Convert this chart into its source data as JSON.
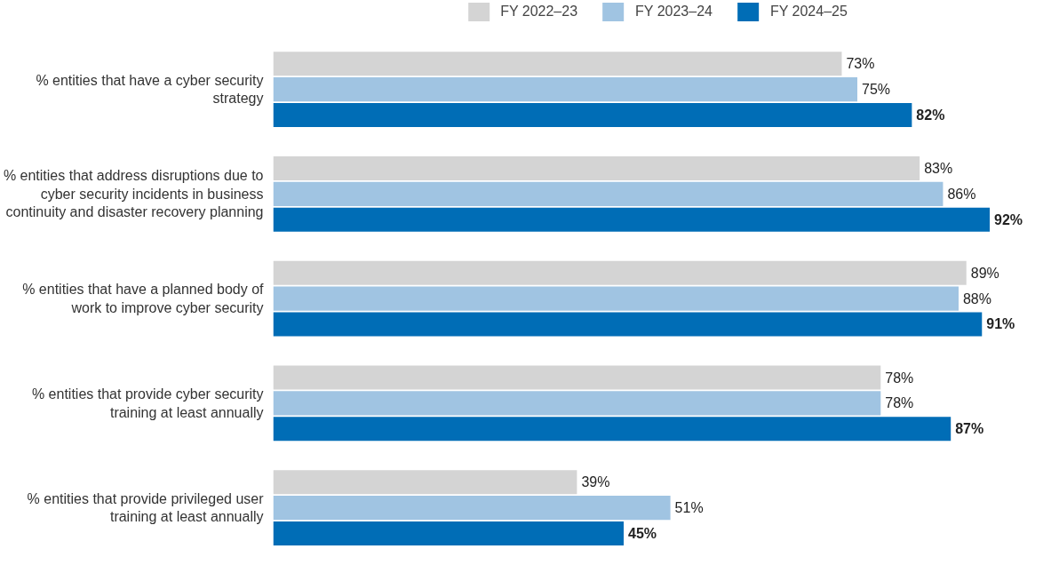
{
  "chart_data": {
    "type": "bar",
    "orientation": "horizontal",
    "categories": [
      "% entities that have a cyber security strategy",
      "% entities that address disruptions due to cyber security incidents in business continuity and disaster recovery planning",
      "% entities that have a planned body of work to improve cyber security",
      "% entities that provide cyber security training at least annually",
      "% entities that provide privileged user training at least annually"
    ],
    "series": [
      {
        "name": "FY 2022–23",
        "color": "#d4d4d4",
        "values": [
          73,
          83,
          89,
          78,
          39
        ],
        "value_labels": [
          "73%",
          "83%",
          "89%",
          "78%",
          "39%"
        ]
      },
      {
        "name": "FY 2023–24",
        "color": "#a0c4e2",
        "values": [
          75,
          86,
          88,
          78,
          51
        ],
        "value_labels": [
          "75%",
          "86%",
          "88%",
          "78%",
          "51%"
        ]
      },
      {
        "name": "FY 2024–25",
        "color": "#006db6",
        "values": [
          82,
          92,
          91,
          87,
          45
        ],
        "value_labels": [
          "82%",
          "92%",
          "91%",
          "87%",
          "45%"
        ]
      }
    ],
    "grid": false,
    "legend": "top",
    "tick_labels": "y"
  }
}
